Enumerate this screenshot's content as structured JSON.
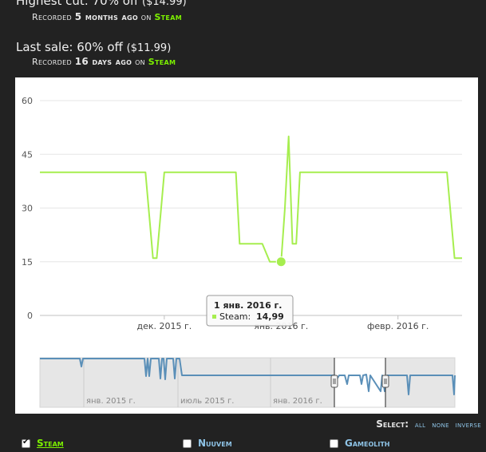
{
  "stats": {
    "highest": {
      "title": "Highest cut: 70% off",
      "price": "($14.99)",
      "recorded_prefix": "Recorded",
      "ago": "5 months ago",
      "on": "on",
      "store": "Steam"
    },
    "last": {
      "title": "Last sale: 60% off",
      "price": "($11.99)",
      "recorded_prefix": "Recorded",
      "ago": "16 days ago",
      "on": "on",
      "store": "Steam"
    }
  },
  "chart_data": {
    "type": "line",
    "series": [
      {
        "color": "#a6ee4f",
        "points": [
          [
            "2015-10-29",
            40
          ],
          [
            "2015-11-26",
            40
          ],
          [
            "2015-11-28",
            16
          ],
          [
            "2015-11-29",
            16
          ],
          [
            "2015-12-01",
            40
          ],
          [
            "2015-12-20",
            40
          ],
          [
            "2015-12-21",
            20
          ],
          [
            "2015-12-26",
            20
          ],
          [
            "2015-12-27",
            20
          ],
          [
            "2015-12-29",
            15
          ],
          [
            "2015-12-30",
            15
          ],
          [
            "2016-01-01",
            15
          ],
          [
            "2016-01-02",
            30
          ],
          [
            "2016-01-03",
            50
          ],
          [
            "2016-01-04",
            20
          ],
          [
            "2016-01-05",
            20
          ],
          [
            "2016-01-06",
            40
          ],
          [
            "2016-02-14",
            40
          ],
          [
            "2016-02-16",
            16
          ],
          [
            "2016-02-18",
            16
          ]
        ]
      }
    ],
    "y_ticks": [
      "0",
      "15",
      "30",
      "45",
      "60"
    ],
    "ylim": [
      0,
      60
    ],
    "x_ticks": [
      {
        "date": "2015-12-01",
        "label": "дек. 2015 г."
      },
      {
        "date": "2016-01-01",
        "label": "янв. 2016 г."
      },
      {
        "date": "2016-02-01",
        "label": "февр. 2016 г."
      }
    ],
    "xlim": [
      "2015-10-29",
      "2016-02-18"
    ],
    "grid": true,
    "tooltip": {
      "date_label": "1 янв. 2016 г.",
      "series_label": "Steam:",
      "value": "14,99"
    },
    "navigator": {
      "color": "#5a8fb8",
      "x_ticks": [
        "янв. 2015 г.",
        "июль 2015 г.",
        "янв. 2016 г."
      ],
      "selected_range": [
        "2015-10-29",
        "2016-02-18"
      ]
    }
  },
  "select": {
    "label": "Select:",
    "options": [
      "all",
      "none",
      "inverse"
    ]
  },
  "stores": [
    {
      "name": "Steam",
      "checked": true,
      "color": "#7cf000"
    },
    {
      "name": "Nuuvem",
      "checked": false,
      "color": "#8ec3e6"
    },
    {
      "name": "Gameolith",
      "checked": false,
      "color": "#8ec3e6"
    }
  ]
}
